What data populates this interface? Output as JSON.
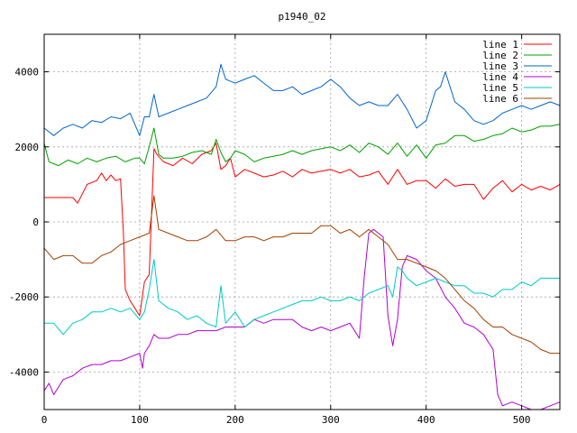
{
  "chart_data": {
    "type": "line",
    "title": "p1940_02",
    "xlabel": "",
    "ylabel": "",
    "xlim": [
      0,
      540
    ],
    "ylim": [
      -5000,
      5000
    ],
    "x_ticks": [
      0,
      100,
      200,
      300,
      400,
      500
    ],
    "y_ticks": [
      -4000,
      -2000,
      0,
      2000,
      4000
    ],
    "x_tick_labels": [
      "0",
      "100",
      "200",
      "300",
      "400",
      "500"
    ],
    "y_tick_labels": [
      "-4000",
      "-2000",
      "0",
      "2000",
      "4000"
    ],
    "grid": true,
    "legend_position": "top-right",
    "series": [
      {
        "name": "line 1",
        "color": "#ff0000",
        "x": [
          0,
          30,
          35,
          40,
          45,
          55,
          60,
          65,
          70,
          75,
          80,
          83,
          85,
          90,
          95,
          100,
          105,
          110,
          113,
          115,
          118,
          125,
          135,
          145,
          155,
          165,
          175,
          180,
          185,
          190,
          195,
          200,
          210,
          220,
          230,
          240,
          250,
          260,
          270,
          280,
          290,
          300,
          310,
          320,
          330,
          340,
          350,
          360,
          370,
          380,
          390,
          400,
          410,
          420,
          430,
          440,
          450,
          460,
          470,
          480,
          490,
          500,
          510,
          520,
          530,
          540
        ],
        "y": [
          650,
          650,
          500,
          750,
          1000,
          1100,
          1300,
          1100,
          1250,
          1100,
          1150,
          -300,
          -1800,
          -2100,
          -2300,
          -2500,
          -1600,
          -1400,
          600,
          1950,
          1800,
          1600,
          1500,
          1700,
          1550,
          1800,
          1900,
          2100,
          1400,
          1500,
          1700,
          1200,
          1400,
          1300,
          1200,
          1250,
          1350,
          1200,
          1400,
          1300,
          1350,
          1400,
          1300,
          1400,
          1200,
          1250,
          1350,
          1000,
          1400,
          1000,
          1100,
          1100,
          900,
          1150,
          950,
          1000,
          1000,
          600,
          900,
          1100,
          800,
          1000,
          850,
          950,
          850,
          1000
        ]
      },
      {
        "name": "line 2",
        "color": "#00a000",
        "x": [
          0,
          5,
          15,
          25,
          35,
          45,
          55,
          65,
          75,
          85,
          95,
          100,
          105,
          110,
          115,
          120,
          125,
          135,
          145,
          155,
          165,
          175,
          180,
          185,
          190,
          195,
          200,
          210,
          220,
          230,
          240,
          250,
          260,
          270,
          280,
          290,
          300,
          310,
          320,
          330,
          340,
          350,
          360,
          370,
          380,
          390,
          400,
          410,
          420,
          430,
          440,
          450,
          460,
          470,
          480,
          490,
          500,
          510,
          520,
          530,
          540
        ],
        "y": [
          2100,
          1600,
          1500,
          1650,
          1550,
          1700,
          1600,
          1700,
          1750,
          1600,
          1700,
          1700,
          1550,
          2000,
          2500,
          1800,
          1700,
          1700,
          1750,
          1850,
          1900,
          1800,
          2200,
          1850,
          1600,
          1700,
          1900,
          1800,
          1600,
          1700,
          1750,
          1800,
          1900,
          1800,
          1900,
          1950,
          2000,
          1900,
          2050,
          1850,
          2100,
          2000,
          1800,
          2100,
          1750,
          2050,
          1700,
          2050,
          2100,
          2300,
          2300,
          2150,
          2200,
          2300,
          2350,
          2500,
          2400,
          2450,
          2550,
          2550,
          2600
        ]
      },
      {
        "name": "line 3",
        "color": "#0066cc",
        "x": [
          0,
          10,
          20,
          30,
          40,
          50,
          60,
          70,
          80,
          90,
          95,
          100,
          105,
          110,
          115,
          120,
          130,
          140,
          150,
          160,
          170,
          180,
          185,
          190,
          200,
          210,
          220,
          230,
          240,
          250,
          260,
          270,
          280,
          290,
          300,
          305,
          310,
          320,
          330,
          340,
          350,
          360,
          370,
          380,
          390,
          400,
          410,
          415,
          420,
          425,
          430,
          440,
          450,
          460,
          470,
          480,
          490,
          500,
          510,
          520,
          530,
          540
        ],
        "y": [
          2500,
          2300,
          2500,
          2600,
          2500,
          2700,
          2650,
          2800,
          2750,
          2900,
          2600,
          2300,
          2800,
          2800,
          3400,
          2800,
          2900,
          3000,
          3100,
          3200,
          3300,
          3600,
          4200,
          3800,
          3700,
          3800,
          3900,
          3700,
          3500,
          3500,
          3600,
          3400,
          3500,
          3600,
          3800,
          3700,
          3600,
          3300,
          3100,
          3200,
          3100,
          3100,
          3400,
          3000,
          2500,
          2700,
          3500,
          3600,
          4000,
          3600,
          3200,
          3000,
          2700,
          2600,
          2700,
          2900,
          3000,
          3100,
          3000,
          3100,
          3200,
          3100
        ]
      },
      {
        "name": "line 4",
        "color": "#b000d0",
        "x": [
          0,
          5,
          10,
          20,
          30,
          40,
          50,
          60,
          70,
          80,
          90,
          100,
          103,
          105,
          110,
          115,
          120,
          130,
          140,
          150,
          160,
          170,
          180,
          190,
          200,
          210,
          220,
          230,
          240,
          250,
          260,
          270,
          280,
          290,
          300,
          310,
          320,
          330,
          335,
          340,
          345,
          350,
          355,
          360,
          365,
          370,
          375,
          380,
          390,
          400,
          410,
          420,
          430,
          440,
          450,
          460,
          470,
          475,
          480,
          490,
          500,
          510,
          520,
          530,
          540
        ],
        "y": [
          -4500,
          -4300,
          -4600,
          -4200,
          -4100,
          -3900,
          -3800,
          -3800,
          -3700,
          -3700,
          -3600,
          -3500,
          -3900,
          -3500,
          -3300,
          -3000,
          -3100,
          -3100,
          -3000,
          -3000,
          -2900,
          -2900,
          -2900,
          -2800,
          -2800,
          -2800,
          -2600,
          -2700,
          -2600,
          -2600,
          -2600,
          -2800,
          -2900,
          -2800,
          -2900,
          -2800,
          -2700,
          -3100,
          -1500,
          -300,
          -200,
          -300,
          -400,
          -2500,
          -3300,
          -2600,
          -1200,
          -900,
          -1000,
          -1300,
          -1500,
          -2000,
          -2300,
          -2700,
          -2800,
          -3000,
          -3400,
          -4600,
          -4900,
          -4800,
          -4900,
          -5000,
          -5000,
          -4900,
          -4800
        ]
      },
      {
        "name": "line 5",
        "color": "#00c8c8",
        "x": [
          0,
          10,
          20,
          30,
          40,
          50,
          60,
          70,
          80,
          90,
          100,
          105,
          110,
          115,
          120,
          130,
          140,
          150,
          160,
          170,
          180,
          185,
          190,
          200,
          210,
          220,
          230,
          240,
          250,
          260,
          270,
          280,
          290,
          300,
          310,
          320,
          330,
          340,
          350,
          360,
          365,
          370,
          375,
          380,
          390,
          400,
          410,
          420,
          430,
          440,
          450,
          460,
          470,
          480,
          490,
          500,
          510,
          520,
          530,
          540
        ],
        "y": [
          -2700,
          -2700,
          -3000,
          -2700,
          -2600,
          -2400,
          -2400,
          -2300,
          -2400,
          -2300,
          -2600,
          -2400,
          -1800,
          -1000,
          -2100,
          -2300,
          -2400,
          -2600,
          -2500,
          -2700,
          -2800,
          -1700,
          -2700,
          -2400,
          -2800,
          -2600,
          -2500,
          -2400,
          -2300,
          -2200,
          -2100,
          -2100,
          -2000,
          -2100,
          -2100,
          -2000,
          -2100,
          -1900,
          -1800,
          -1700,
          -2000,
          -1200,
          -1300,
          -1500,
          -1700,
          -1600,
          -1500,
          -1600,
          -1700,
          -1700,
          -1900,
          -1900,
          -2000,
          -1800,
          -1800,
          -1600,
          -1700,
          -1500,
          -1500,
          -1500
        ]
      },
      {
        "name": "line 6",
        "color": "#a04000",
        "x": [
          0,
          10,
          20,
          30,
          40,
          50,
          60,
          70,
          80,
          90,
          100,
          110,
          115,
          120,
          130,
          140,
          150,
          160,
          170,
          180,
          190,
          200,
          210,
          220,
          230,
          240,
          250,
          260,
          270,
          280,
          290,
          300,
          310,
          320,
          330,
          340,
          350,
          360,
          370,
          380,
          390,
          400,
          410,
          420,
          430,
          440,
          450,
          460,
          470,
          480,
          490,
          500,
          510,
          520,
          530,
          540
        ],
        "y": [
          -700,
          -1000,
          -900,
          -900,
          -1100,
          -1100,
          -900,
          -800,
          -600,
          -500,
          -400,
          -300,
          700,
          -200,
          -300,
          -400,
          -500,
          -500,
          -400,
          -200,
          -500,
          -500,
          -400,
          -400,
          -500,
          -400,
          -400,
          -300,
          -300,
          -300,
          -100,
          -100,
          -300,
          -200,
          -400,
          -200,
          -400,
          -600,
          -1000,
          -1000,
          -1100,
          -1200,
          -1300,
          -1500,
          -1800,
          -2100,
          -2300,
          -2600,
          -2800,
          -2800,
          -3000,
          -3100,
          -3200,
          -3400,
          -3500,
          -3500
        ]
      }
    ]
  }
}
